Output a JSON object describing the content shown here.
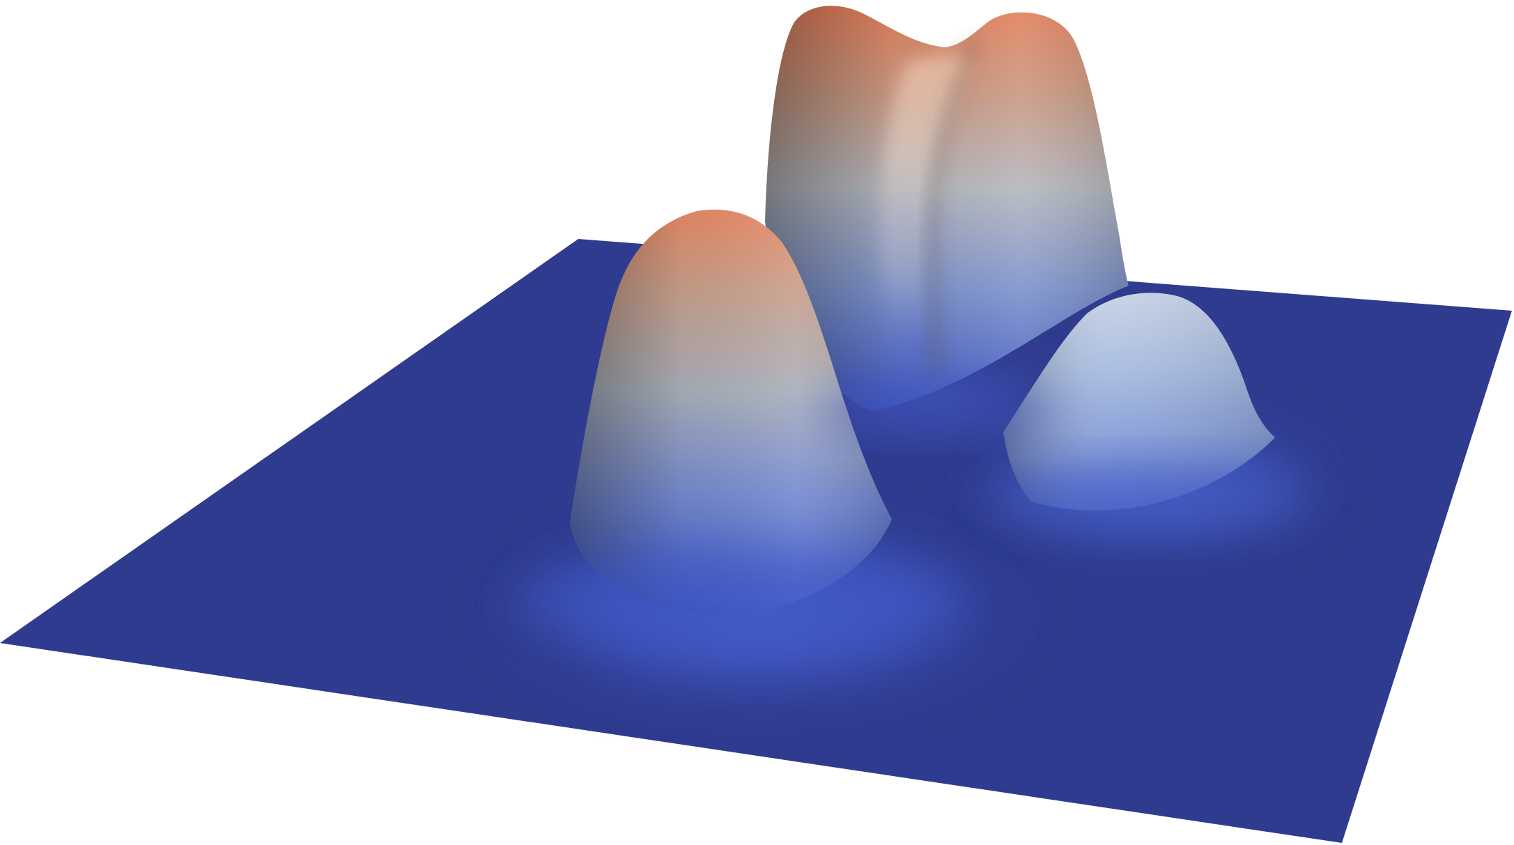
{
  "figure": {
    "kind": "3d-surface-render",
    "colormap": "cool-to-warm",
    "colors": {
      "base": "#2f3b8e",
      "low": "#3f56c4",
      "mid": "#b5bcc6",
      "high": "#e4805c"
    },
    "peaks_visible": 4
  }
}
